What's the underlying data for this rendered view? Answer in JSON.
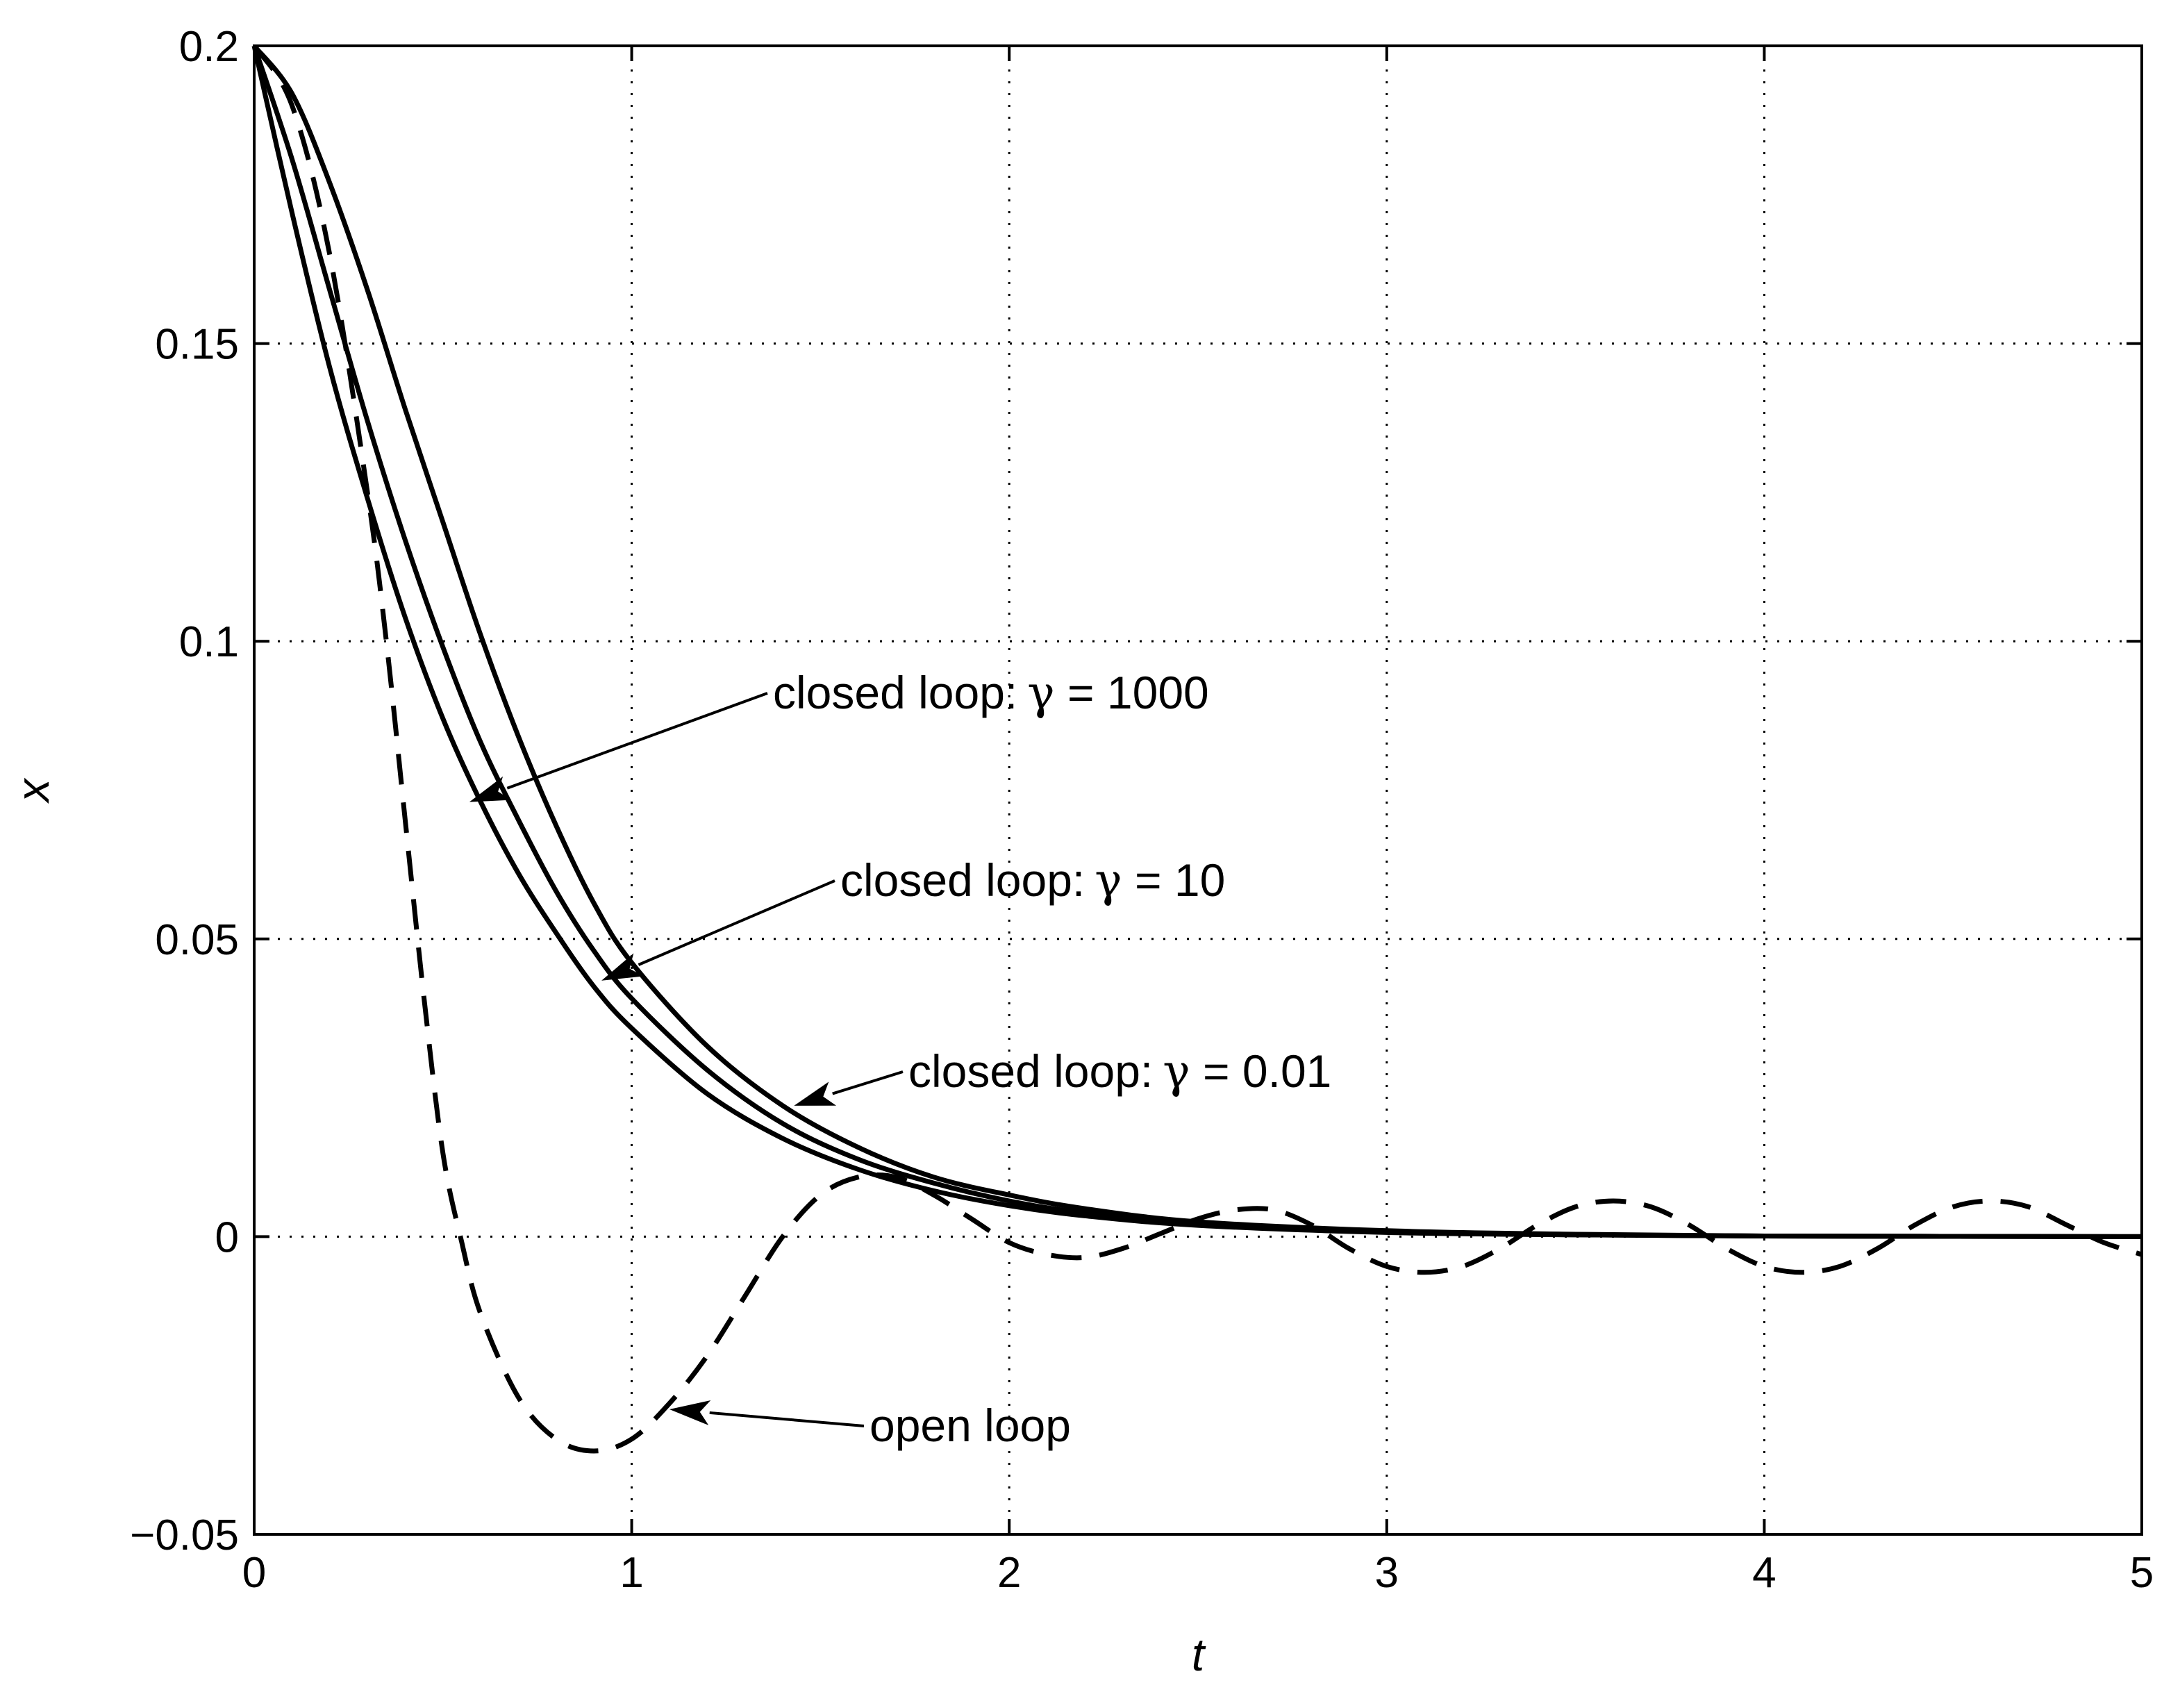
{
  "chart_data": {
    "type": "line",
    "title": "",
    "xlabel": "t",
    "ylabel": "x",
    "xlim": [
      0,
      5
    ],
    "ylim": [
      -0.05,
      0.2
    ],
    "grid": true,
    "x_ticks": [
      {
        "value": 0,
        "label": "0"
      },
      {
        "value": 1,
        "label": "1"
      },
      {
        "value": 2,
        "label": "2"
      },
      {
        "value": 3,
        "label": "3"
      },
      {
        "value": 4,
        "label": "4"
      },
      {
        "value": 5,
        "label": "5"
      }
    ],
    "y_ticks": [
      {
        "value": -0.05,
        "label": "−0.05"
      },
      {
        "value": 0,
        "label": "0"
      },
      {
        "value": 0.05,
        "label": "0.05"
      },
      {
        "value": 0.1,
        "label": "0.1"
      },
      {
        "value": 0.15,
        "label": "0.15"
      },
      {
        "value": 0.2,
        "label": "0.2"
      }
    ],
    "series": [
      {
        "id": "gamma-1000",
        "style": "solid",
        "color": "#000000",
        "x": [
          0,
          0.1,
          0.2,
          0.3,
          0.4,
          0.5,
          0.6,
          0.7,
          0.8,
          0.9,
          1.0,
          1.2,
          1.4,
          1.6,
          1.8,
          2.0,
          2.2,
          2.5,
          3.0,
          3.5,
          4.0,
          4.5,
          5.0
        ],
        "y": [
          0.2,
          0.172,
          0.146,
          0.124,
          0.104,
          0.087,
          0.073,
          0.061,
          0.051,
          0.042,
          0.035,
          0.024,
          0.0165,
          0.0113,
          0.0077,
          0.0052,
          0.0035,
          0.0019,
          0.0007,
          0.0003,
          0.0001,
          5e-05,
          0.0
        ]
      },
      {
        "id": "gamma-10",
        "style": "solid",
        "color": "#000000",
        "x": [
          0,
          0.1,
          0.2,
          0.3,
          0.4,
          0.5,
          0.6,
          0.7,
          0.8,
          0.9,
          1.0,
          1.2,
          1.4,
          1.6,
          1.8,
          2.0,
          2.2,
          2.5,
          3.0,
          3.5,
          4.0,
          4.5,
          5.0
        ],
        "y": [
          0.2,
          0.181,
          0.159,
          0.137,
          0.117,
          0.099,
          0.083,
          0.07,
          0.058,
          0.048,
          0.04,
          0.028,
          0.019,
          0.013,
          0.009,
          0.006,
          0.004,
          0.0022,
          0.0008,
          0.0003,
          0.0001,
          5e-05,
          0.0
        ]
      },
      {
        "id": "gamma-0.01",
        "style": "solid",
        "color": "#000000",
        "x": [
          0,
          0.1,
          0.2,
          0.3,
          0.4,
          0.5,
          0.6,
          0.7,
          0.8,
          0.9,
          1.0,
          1.2,
          1.4,
          1.6,
          1.8,
          2.0,
          2.2,
          2.5,
          3.0,
          3.5,
          4.0,
          4.5,
          5.0
        ],
        "y": [
          0.2,
          0.192,
          0.177,
          0.159,
          0.139,
          0.12,
          0.101,
          0.084,
          0.069,
          0.056,
          0.046,
          0.032,
          0.022,
          0.015,
          0.01,
          0.007,
          0.0047,
          0.0025,
          0.001,
          0.0004,
          0.0001,
          5e-05,
          0.0
        ]
      },
      {
        "id": "open-loop",
        "style": "dashed",
        "color": "#000000",
        "x": [
          0,
          0.1,
          0.2,
          0.3,
          0.35,
          0.4,
          0.45,
          0.5,
          0.55,
          0.6,
          0.7,
          0.8,
          0.9,
          1.0,
          1.1,
          1.2,
          1.3,
          1.4,
          1.5,
          1.6,
          1.7,
          1.8,
          1.9,
          2.0,
          2.1,
          2.2,
          2.3,
          2.4,
          2.5,
          2.6,
          2.7,
          2.8,
          2.9,
          3.0,
          3.1,
          3.2,
          3.3,
          3.4,
          3.5,
          3.6,
          3.7,
          3.8,
          3.9,
          4.0,
          4.1,
          4.2,
          4.3,
          4.4,
          4.5,
          4.6,
          4.7,
          4.8,
          4.9,
          5.0
        ],
        "y": [
          0.2,
          0.19,
          0.165,
          0.125,
          0.1,
          0.07,
          0.04,
          0.014,
          -0.001,
          -0.013,
          -0.027,
          -0.034,
          -0.036,
          -0.034,
          -0.028,
          -0.02,
          -0.01,
          0.0,
          0.007,
          0.01,
          0.01,
          0.007,
          0.003,
          -0.001,
          -0.003,
          -0.0035,
          -0.002,
          0.0005,
          0.003,
          0.0045,
          0.0045,
          0.002,
          -0.002,
          -0.005,
          -0.006,
          -0.005,
          -0.002,
          0.002,
          0.005,
          0.006,
          0.005,
          0.002,
          -0.002,
          -0.005,
          -0.006,
          -0.005,
          -0.002,
          0.002,
          0.005,
          0.006,
          0.005,
          0.002,
          -0.001,
          -0.003
        ]
      }
    ],
    "annotations": [
      {
        "id": "annot-gamma-1000",
        "prefix": "closed loop:",
        "symbol": "γ",
        "suffix": " = 1000",
        "target": [
          0.57,
          0.073
        ]
      },
      {
        "id": "annot-gamma-10",
        "prefix": "closed loop:",
        "symbol": "γ",
        "suffix": " = 10",
        "target": [
          0.92,
          0.043
        ]
      },
      {
        "id": "annot-gamma-0.01",
        "prefix": "closed loop:",
        "symbol": "γ",
        "suffix": " = 0.01",
        "target": [
          1.43,
          0.022
        ]
      },
      {
        "id": "annot-open-loop",
        "prefix": "open loop",
        "symbol": "",
        "suffix": "",
        "target": [
          1.1,
          -0.029
        ]
      }
    ]
  }
}
